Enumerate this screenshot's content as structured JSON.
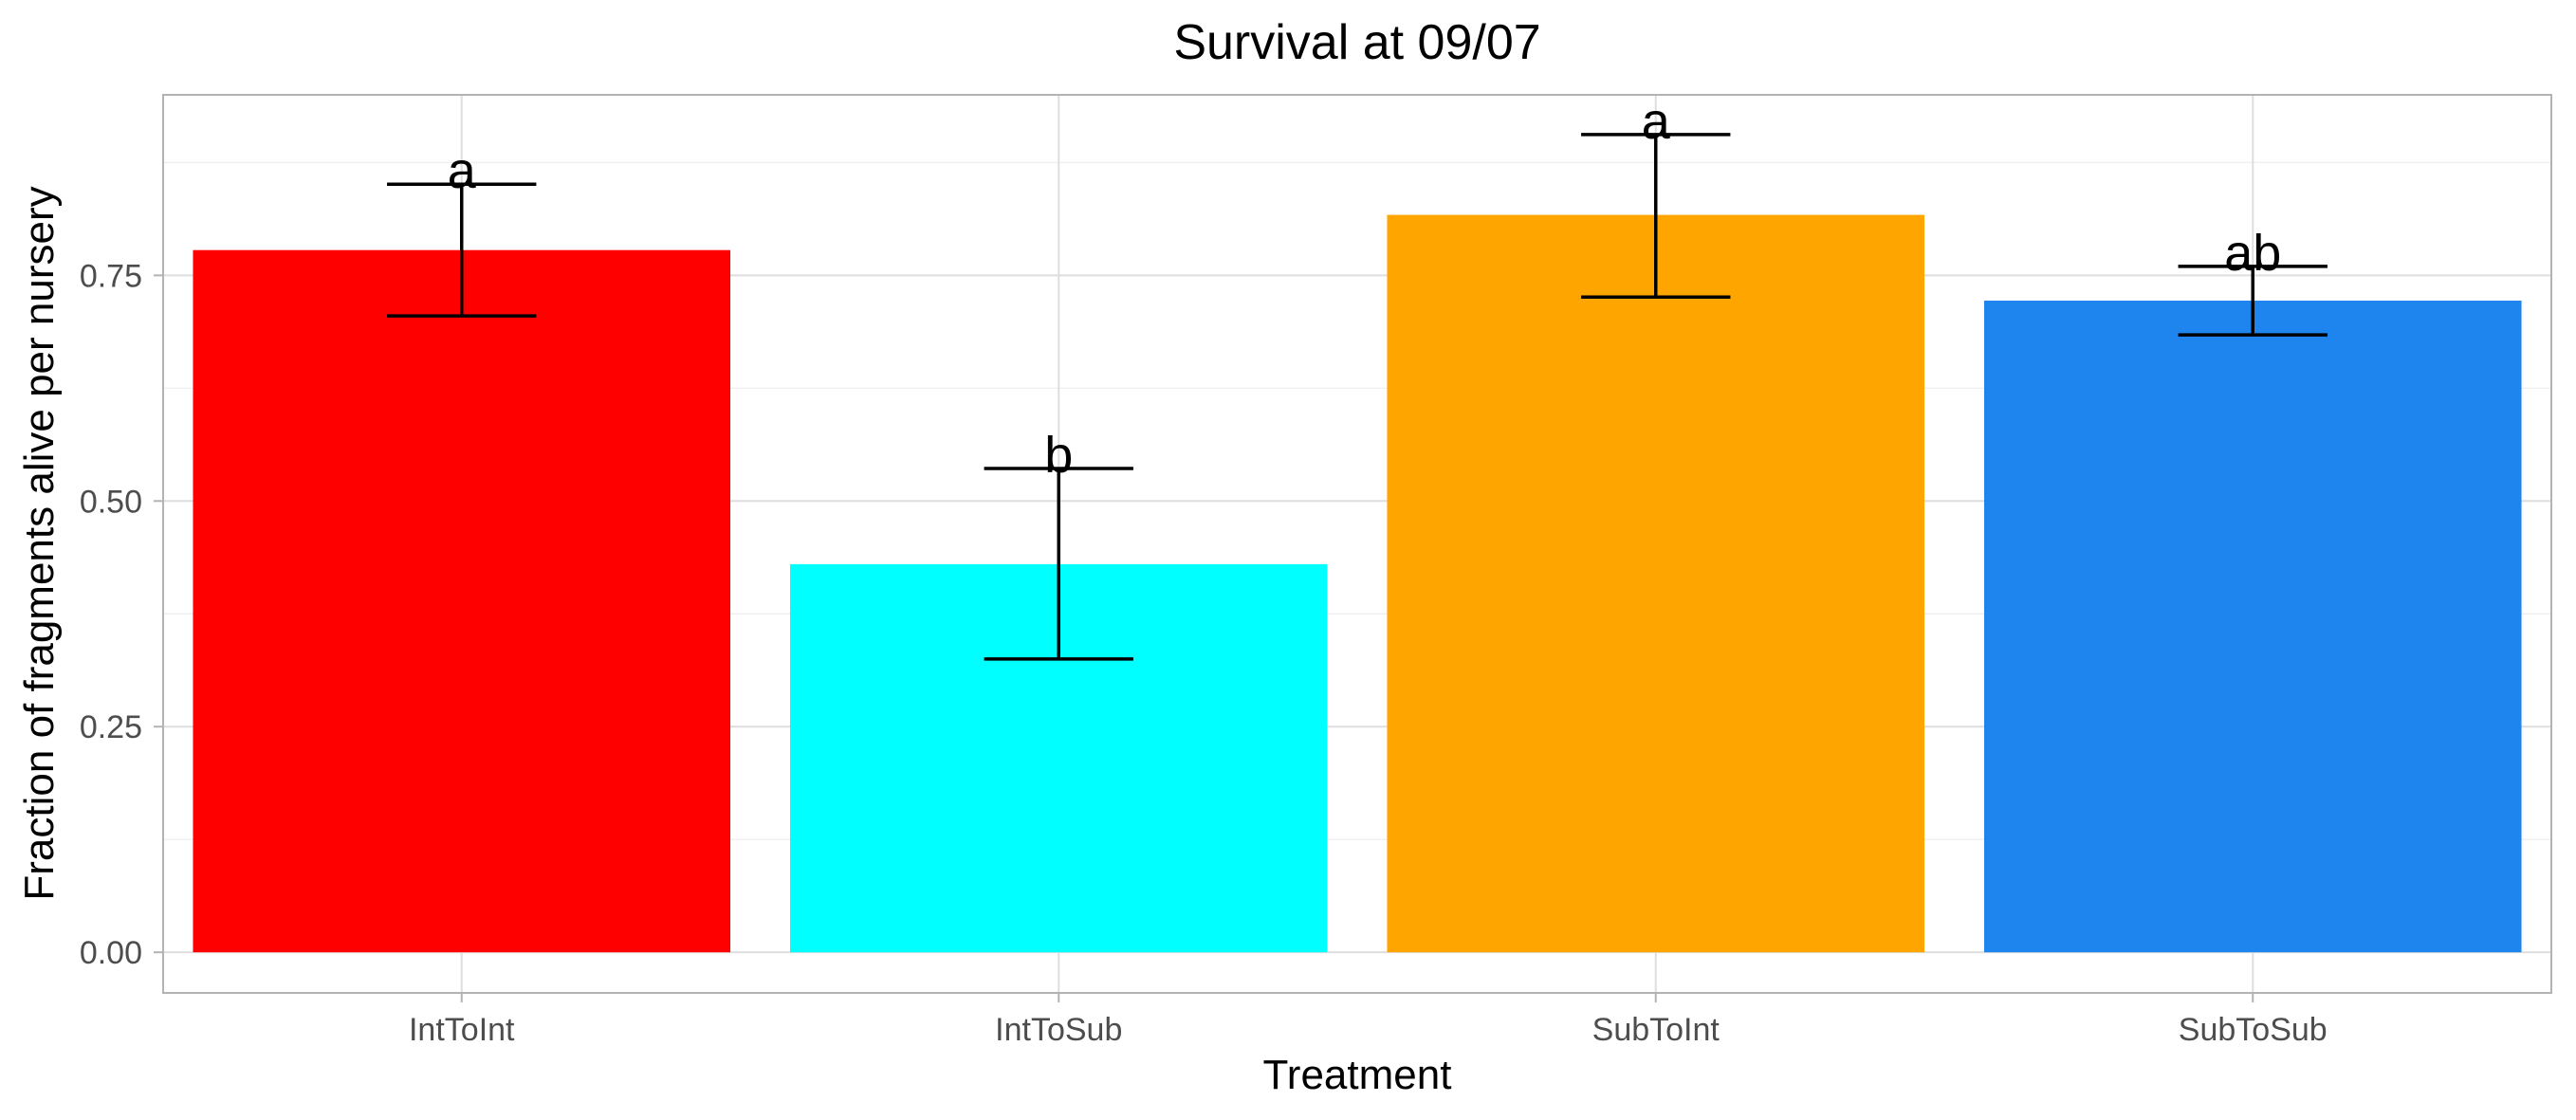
{
  "chart_data": {
    "type": "bar",
    "title": "Survival at 09/07",
    "xlabel": "Treatment",
    "ylabel": "Fraction of fragments alive per nursery",
    "categories": [
      "IntToInt",
      "IntToSub",
      "SubToInt",
      "SubToSub"
    ],
    "values": [
      0.778,
      0.43,
      0.817,
      0.722
    ],
    "error_lower": [
      0.705,
      0.325,
      0.726,
      0.684
    ],
    "error_upper": [
      0.851,
      0.536,
      0.906,
      0.76
    ],
    "significance_labels": [
      "a",
      "b",
      "a",
      "ab"
    ],
    "colors": [
      "#FF0000",
      "#00FFFF",
      "#FFA500",
      "#1E85EE"
    ],
    "ylim": [
      -0.045,
      0.95
    ],
    "yticks": [
      0,
      0.25,
      0.5,
      0.75
    ],
    "ytick_labels": [
      "0.00",
      "0.25",
      "0.50",
      "0.75"
    ],
    "grid": true,
    "legend": "none"
  }
}
